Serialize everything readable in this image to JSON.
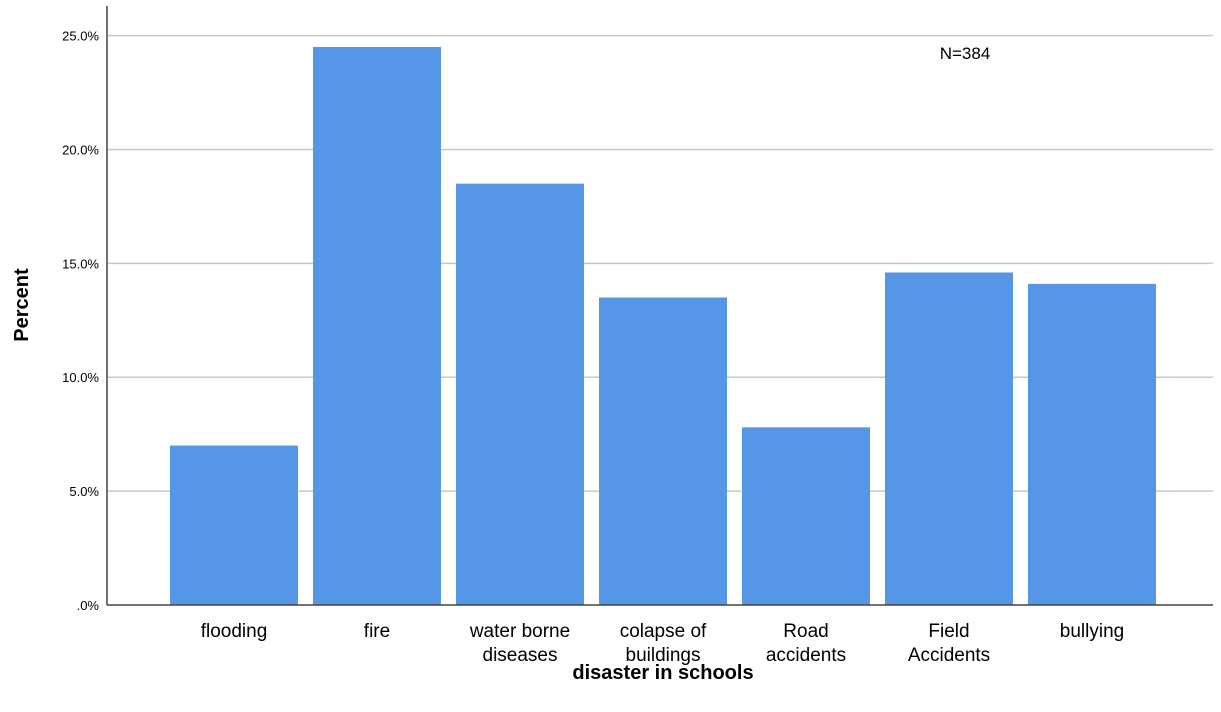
{
  "chart_data": {
    "type": "bar",
    "categories": [
      [
        "flooding"
      ],
      [
        "fire"
      ],
      [
        "water borne",
        "diseases"
      ],
      [
        "colapse of",
        "buildings"
      ],
      [
        "Road",
        "accidents"
      ],
      [
        "Field",
        "Accidents"
      ],
      [
        "bullying"
      ]
    ],
    "values": [
      7.0,
      24.5,
      18.5,
      13.5,
      7.8,
      14.6,
      14.1
    ],
    "xlabel": "disaster in schools",
    "ylabel": "Percent",
    "ylim": [
      0,
      26.3
    ],
    "yticks": [
      0,
      5,
      10,
      15,
      20,
      25
    ],
    "ytick_labels": [
      ".0%",
      "5.0%",
      "10.0%",
      "15.0%",
      "20.0%",
      "25.0%"
    ],
    "annotation": "N=384",
    "grid": true,
    "bar_color": "#5596e6",
    "grid_color": "#c8c8c8"
  }
}
